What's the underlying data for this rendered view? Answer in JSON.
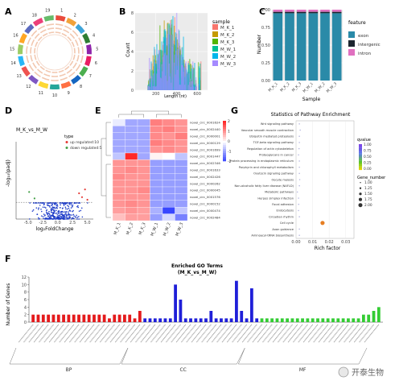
{
  "panels": {
    "A": "A",
    "B": "B",
    "C": "C",
    "D": "D",
    "E": "E",
    "F": "F",
    "G": "G"
  },
  "circos": {
    "labels": [
      "1",
      "2",
      "3",
      "4",
      "5",
      "6",
      "7",
      "8",
      "9",
      "10",
      "11",
      "12",
      "13",
      "14",
      "15",
      "16",
      "17",
      "18",
      "19"
    ],
    "colors": [
      "#e94b3c",
      "#f2a23a",
      "#3fa4d8",
      "#2e7d32",
      "#8e24aa",
      "#e91e63",
      "#4caf50",
      "#1565c0",
      "#ff7043",
      "#26a69a",
      "#fdd835",
      "#7e57c2",
      "#ef5350",
      "#29b6f6",
      "#9ccc65",
      "#ffa726",
      "#5c6bc0",
      "#ec407a",
      "#66bb6a"
    ]
  },
  "chart_data": [
    {
      "panel": "B",
      "type": "bar",
      "title": "",
      "xlabel": "Length (nt)",
      "ylabel": "Count",
      "xlim": [
        0,
        700
      ],
      "ylim": [
        0,
        8
      ],
      "xticks": [
        200,
        400,
        600
      ],
      "yticks": [
        0,
        2,
        4,
        6,
        8
      ],
      "legend_title": "sample",
      "legend_position": "right",
      "series": [
        {
          "name": "M_K_1",
          "color": "#f8766d"
        },
        {
          "name": "M_K_2",
          "color": "#c49a00"
        },
        {
          "name": "M_K_3",
          "color": "#53b400"
        },
        {
          "name": "M_W_1",
          "color": "#00c094"
        },
        {
          "name": "M_W_2",
          "color": "#00b6eb"
        },
        {
          "name": "M_W_3",
          "color": "#a58aff"
        }
      ]
    },
    {
      "panel": "C",
      "type": "bar",
      "title": "",
      "xlabel": "Sample",
      "ylabel": "Number",
      "ylim": [
        0,
        1
      ],
      "yticks": [
        "0.00",
        "0.25",
        "0.50",
        "0.75",
        "1.00"
      ],
      "categories": [
        "M_K_1",
        "M_K_2",
        "M_K_3",
        "M_W_1",
        "M_W_2",
        "M_W_3"
      ],
      "legend_title": "feature",
      "legend_position": "right",
      "series": [
        {
          "name": "exon",
          "color": "#2a8aa8",
          "values": [
            0.95,
            0.95,
            0.95,
            0.95,
            0.95,
            0.95
          ]
        },
        {
          "name": "intergenic",
          "color": "#1d2630",
          "values": [
            0.02,
            0.02,
            0.02,
            0.02,
            0.02,
            0.02
          ]
        },
        {
          "name": "intron",
          "color": "#e070c0",
          "values": [
            0.03,
            0.03,
            0.03,
            0.03,
            0.03,
            0.03
          ]
        }
      ]
    },
    {
      "panel": "D",
      "type": "scatter",
      "title": "M_K_vs_M_W",
      "xlabel": "log₂FoldChange",
      "ylabel": "-log₁₀(padj)",
      "xlim": [
        -7,
        6
      ],
      "ylim": [
        0,
        6
      ],
      "xticks": [
        "-5.0",
        "-2.5",
        "0.0",
        "2.5",
        "5.0"
      ],
      "threshold_y": 1.3,
      "legend_title": "type",
      "legend": [
        {
          "name": "up regulated:10",
          "color": "#e53935"
        },
        {
          "name": "down regulated:5",
          "color": "#43a047"
        }
      ],
      "up": [
        [
          3.6,
          2.0
        ],
        [
          4.1,
          1.7
        ],
        [
          4.6,
          2.3
        ],
        [
          5.0,
          1.5
        ]
      ],
      "down": [
        [
          -3.9,
          1.6
        ],
        [
          -4.8,
          2.1
        ]
      ],
      "ns_color": "#1e3cc8"
    },
    {
      "panel": "E",
      "type": "heatmap",
      "title": "",
      "columns": [
        "M_K_1",
        "M_K_2",
        "M_K_3",
        "M_W_1",
        "M_W_2",
        "M_W_3"
      ],
      "rows": [
        "novel_circ_0001624",
        "novel_circ_0002440",
        "novel_circ_0000001",
        "novel_circ_0000129",
        "novel_circ_0001699",
        "novel_circ_0001447",
        "novel_circ_0002346",
        "novel_circ_0001633",
        "novel_circ_0002426",
        "novel_circ_0000262",
        "novel_circ_0000045",
        "novel_circ_0001576",
        "novel_circ_0000152",
        "novel_circ_0000474",
        "novel_circ_0002484"
      ],
      "values": [
        [
          -0.2,
          -0.9,
          -0.9,
          1.2,
          1.1,
          1.0
        ],
        [
          -0.9,
          -0.9,
          -0.9,
          1.1,
          1.2,
          1.0
        ],
        [
          -0.9,
          -0.9,
          -0.9,
          1.1,
          1.0,
          1.2
        ],
        [
          -0.9,
          -0.9,
          -0.9,
          1.2,
          1.1,
          1.0
        ],
        [
          -0.9,
          -0.9,
          -0.9,
          1.0,
          1.1,
          1.0
        ],
        [
          -0.6,
          2.0,
          -0.9,
          0.1,
          0.0,
          -0.6
        ],
        [
          1.0,
          1.0,
          1.0,
          -1.0,
          -1.0,
          -1.0
        ],
        [
          1.0,
          1.1,
          1.0,
          -1.0,
          -1.0,
          -1.0
        ],
        [
          1.1,
          1.0,
          1.0,
          -1.0,
          -1.0,
          -1.0
        ],
        [
          1.0,
          1.0,
          1.0,
          -1.0,
          -1.0,
          -1.0
        ],
        [
          1.0,
          1.0,
          1.1,
          -1.0,
          -1.0,
          -1.0
        ],
        [
          1.0,
          1.0,
          1.0,
          -1.0,
          -1.0,
          -1.0
        ],
        [
          1.0,
          1.1,
          1.0,
          -1.0,
          -1.0,
          -1.0
        ],
        [
          0.9,
          1.0,
          0.9,
          -0.8,
          -1.9,
          -0.6
        ],
        [
          0.6,
          0.9,
          0.9,
          -1.0,
          -0.4,
          -1.3
        ]
      ],
      "scale_ticks": [
        "2",
        "1",
        "0",
        "-1",
        "-2"
      ]
    },
    {
      "panel": "G",
      "type": "scatter",
      "title": "Statistics of Pathway Enrichment",
      "xlabel": "Rich factor",
      "ylabel": "",
      "xlim": [
        0,
        0.035
      ],
      "xticks": [
        "0.00",
        "0.01",
        "0.02",
        "0.03"
      ],
      "pathways": [
        "Wnt signaling pathway",
        "Vascular smooth muscle contraction",
        "Ubiquitin mediated proteolysis",
        "TGF-beta signaling pathway",
        "Regulation of actin cytoskeleton",
        "Proteoglycans in cancer",
        "Protein processing in endoplasmic reticulum",
        "Porphyrin and chlorophyll metabolism",
        "Oxytocin signaling pathway",
        "Oocyte meiosis",
        "Non-alcoholic fatty liver disease (NAFLD)",
        "Metabolic pathways",
        "Herpes simplex infection",
        "Focal adhesion",
        "Endocytosis",
        "Circadian rhythm",
        "Cell cycle",
        "Axon guidance",
        "Aminoacyl-tRNA biosynthesis"
      ],
      "rich_factor": [
        0.002,
        0.0025,
        0.002,
        0.002,
        0.0018,
        0.0015,
        0.002,
        0.002,
        0.002,
        0.0022,
        0.002,
        0.0008,
        0.0015,
        0.0016,
        0.0015,
        0.002,
        0.016,
        0.002,
        0.002
      ],
      "qvalue": [
        1,
        1,
        1,
        1,
        1,
        1,
        1,
        1,
        1,
        1,
        1,
        1,
        1,
        1,
        1,
        1,
        0.4,
        1,
        1
      ],
      "gene_number": [
        1,
        1,
        1,
        1,
        1,
        1,
        1,
        1,
        1,
        1,
        1,
        1,
        1,
        1,
        1,
        1,
        2,
        1,
        1
      ],
      "legend_qvalue_title": "qvalue",
      "legend_qvalue_ticks": [
        "1.00",
        "0.75",
        "0.50",
        "0.25",
        "0.00"
      ],
      "legend_gene_title": "Gene_number",
      "legend_gene_ticks": [
        "1.00",
        "1.25",
        "1.50",
        "1.75",
        "2.00"
      ]
    },
    {
      "panel": "F",
      "type": "bar",
      "title": "Enriched GO Terms",
      "subtitle": "(M_K_vs_M_W)",
      "xlabel": "",
      "ylabel": "Number of Genes",
      "ylim": [
        0,
        12
      ],
      "yticks": [
        0,
        2,
        4,
        6,
        8,
        10,
        12
      ],
      "groups": [
        {
          "name": "BP",
          "color": "#e41a1c",
          "values": [
            2,
            2,
            2,
            2,
            2,
            2,
            2,
            2,
            2,
            2,
            2,
            2,
            2,
            2,
            2,
            1,
            2,
            2,
            2,
            2,
            1,
            3
          ]
        },
        {
          "name": "CC",
          "color": "#1f1fd8",
          "values": [
            1,
            1,
            1,
            1,
            1,
            1,
            10,
            6,
            1,
            1,
            1,
            1,
            1,
            3,
            1,
            1,
            1,
            1,
            11,
            3,
            1,
            9,
            1
          ]
        },
        {
          "name": "MF",
          "color": "#33cc33",
          "values": [
            1,
            1,
            1,
            1,
            1,
            1,
            1,
            1,
            1,
            1,
            1,
            1,
            1,
            1,
            1,
            1,
            1,
            1,
            1,
            1,
            2,
            2,
            3,
            4
          ]
        }
      ]
    }
  ],
  "watermark": "开泰生物"
}
